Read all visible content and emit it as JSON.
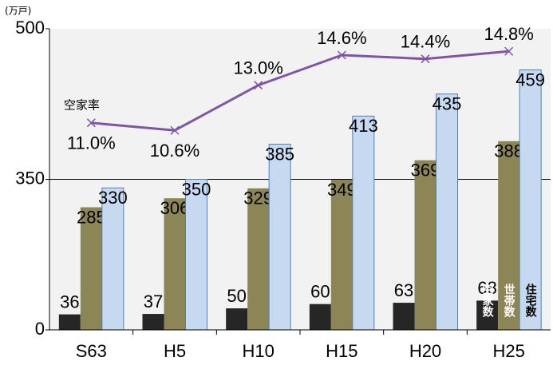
{
  "chart_data": {
    "type": "bar",
    "y_unit": "(万戸)",
    "categories": [
      "S63",
      "H5",
      "H10",
      "H15",
      "H20",
      "H25"
    ],
    "series": [
      {
        "name": "空家数",
        "color": "#262626",
        "values": [
          36,
          37,
          50,
          60,
          63,
          68
        ]
      },
      {
        "name": "世帯数",
        "color": "#8c8555",
        "values": [
          285,
          306,
          329,
          349,
          369,
          388
        ]
      },
      {
        "name": "住宅数",
        "color": "#c6d9f1",
        "values": [
          330,
          350,
          385,
          413,
          435,
          459
        ]
      },
      {
        "name": "空家率",
        "type": "line",
        "axis": "y2",
        "color": "#7f55a8",
        "values": [
          11.0,
          10.6,
          13.0,
          14.6,
          14.4,
          14.8
        ],
        "value_labels": [
          "11.0%",
          "10.6%",
          "13.0%",
          "14.6%",
          "14.4%",
          "14.8%"
        ]
      }
    ],
    "ylim": [
      0,
      500
    ],
    "yticks": [
      0,
      350,
      500
    ],
    "y2lim": [
      0,
      16
    ],
    "grid": true
  }
}
